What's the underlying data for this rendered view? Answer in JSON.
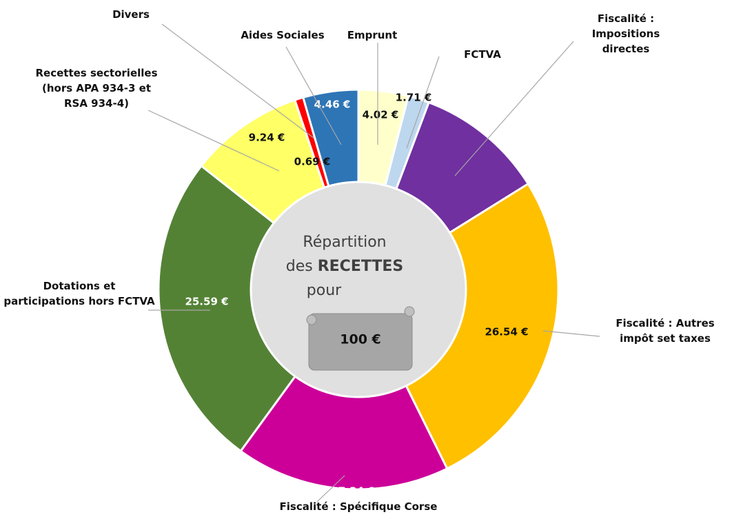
{
  "chart_data": {
    "type": "pie",
    "categories": [
      "Emprunt",
      "FCTVA",
      "Fiscalité : Impositions directes",
      "Fiscalité : Autres impôt set taxes",
      "Fiscalité : Spécifique Corse",
      "Dotations et participations hors FCTVA",
      "Recettes sectorielles (hors APA 934-3 et RSA 934-4)",
      "Divers",
      "Aides Sociales"
    ],
    "values": [
      4.02,
      1.71,
      10.41,
      26.54,
      17.34,
      25.59,
      9.24,
      0.69,
      4.46
    ],
    "value_labels": [
      "4.02 €",
      "1.71 €",
      null,
      "26.54 €",
      "17.34 €",
      "25.59 €",
      "9.24 €",
      "0.69 €",
      "4.46 €"
    ],
    "colors": [
      "#FFFFCC",
      "#BDD7EE",
      "#7030A0",
      "#FFC000",
      "#CC0099",
      "#548235",
      "#FFFF66",
      "#FF0000",
      "#2E75B6"
    ],
    "center_lines": [
      "Répartition",
      "des",
      "RECETTES",
      "pour"
    ],
    "center_value": "100 €"
  }
}
